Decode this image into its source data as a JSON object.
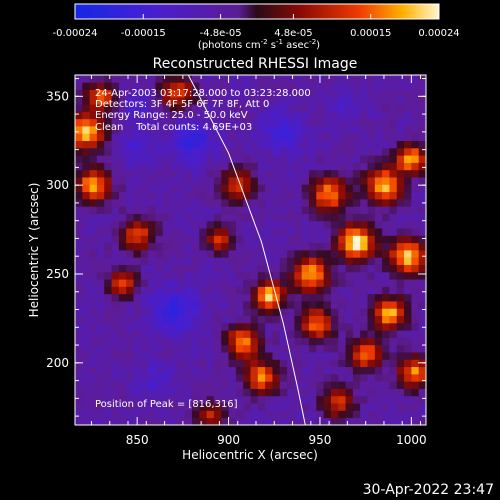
{
  "chart_data": {
    "type": "heatmap",
    "title": "Reconstructed RHESSI Image",
    "xlabel": "Heliocentric X (arcsec)",
    "ylabel": "Heliocentric Y (arcsec)",
    "x_ticks": [
      850,
      900,
      950,
      1000
    ],
    "y_ticks": [
      200,
      250,
      300,
      350
    ],
    "xlim": [
      816,
      1008
    ],
    "ylim": [
      165,
      362
    ],
    "colorbar": {
      "ticks": [
        "-0.00024",
        "-0.00015",
        "-4.8e-05",
        "4.8e-05",
        "0.00015",
        "0.00024"
      ],
      "range": [
        -0.00024,
        0.00024
      ],
      "units_main": "(photons cm",
      "units_exp1": "-2",
      "units_mid": " s",
      "units_exp2": "-1",
      "units_tail": " asec",
      "units_exp3": "-2",
      "units_close": ")"
    },
    "annotations": [
      "24-Apr-2003 03:17:28.000 to 03:23:28.000",
      "Detectors: 3F 4F 5F 6F 7F 8F, Att 0",
      "Energy Range: 25.0 - 50.0 keV",
      "Clean    Total counts: 4.69E+03"
    ],
    "peak_label": "Position of Peak = [816,316]",
    "limb_curve": {
      "description_free": true,
      "points": [
        [
          878,
          362
        ],
        [
          900,
          318
        ],
        [
          918,
          268
        ],
        [
          930,
          222
        ],
        [
          938,
          185
        ],
        [
          942,
          165
        ]
      ]
    },
    "hotspots": [
      {
        "x": 822,
        "y": 330,
        "v": 0.9,
        "r": 10
      },
      {
        "x": 826,
        "y": 300,
        "v": 0.8,
        "r": 9
      },
      {
        "x": 850,
        "y": 272,
        "v": 0.55,
        "r": 9
      },
      {
        "x": 842,
        "y": 245,
        "v": 0.5,
        "r": 8
      },
      {
        "x": 830,
        "y": 350,
        "v": 0.6,
        "r": 8
      },
      {
        "x": 872,
        "y": 352,
        "v": 0.6,
        "r": 9
      },
      {
        "x": 905,
        "y": 300,
        "v": 0.55,
        "r": 9
      },
      {
        "x": 955,
        "y": 295,
        "v": 0.7,
        "r": 10
      },
      {
        "x": 985,
        "y": 300,
        "v": 0.85,
        "r": 10
      },
      {
        "x": 1000,
        "y": 315,
        "v": 0.8,
        "r": 8
      },
      {
        "x": 970,
        "y": 268,
        "v": 1.0,
        "r": 10
      },
      {
        "x": 998,
        "y": 260,
        "v": 0.85,
        "r": 10
      },
      {
        "x": 945,
        "y": 250,
        "v": 0.8,
        "r": 10
      },
      {
        "x": 922,
        "y": 238,
        "v": 0.95,
        "r": 8
      },
      {
        "x": 908,
        "y": 212,
        "v": 0.75,
        "r": 9
      },
      {
        "x": 918,
        "y": 192,
        "v": 0.7,
        "r": 9
      },
      {
        "x": 948,
        "y": 222,
        "v": 0.65,
        "r": 9
      },
      {
        "x": 988,
        "y": 228,
        "v": 0.8,
        "r": 9
      },
      {
        "x": 975,
        "y": 205,
        "v": 0.65,
        "r": 9
      },
      {
        "x": 1002,
        "y": 195,
        "v": 0.7,
        "r": 9
      },
      {
        "x": 960,
        "y": 178,
        "v": 0.45,
        "r": 9
      },
      {
        "x": 890,
        "y": 170,
        "v": 0.4,
        "r": 8
      },
      {
        "x": 895,
        "y": 270,
        "v": 0.5,
        "r": 7
      }
    ],
    "coldspots": [
      {
        "x": 870,
        "y": 230,
        "v": -0.75,
        "r": 12
      },
      {
        "x": 880,
        "y": 325,
        "v": -0.7,
        "r": 12
      },
      {
        "x": 850,
        "y": 320,
        "v": -0.55,
        "r": 10
      },
      {
        "x": 930,
        "y": 330,
        "v": -0.65,
        "r": 11
      },
      {
        "x": 860,
        "y": 190,
        "v": -0.5,
        "r": 10
      },
      {
        "x": 965,
        "y": 345,
        "v": -0.45,
        "r": 9
      },
      {
        "x": 850,
        "y": 345,
        "v": -0.5,
        "r": 8
      }
    ]
  },
  "footer_timestamp": "30-Apr-2022 23:47"
}
